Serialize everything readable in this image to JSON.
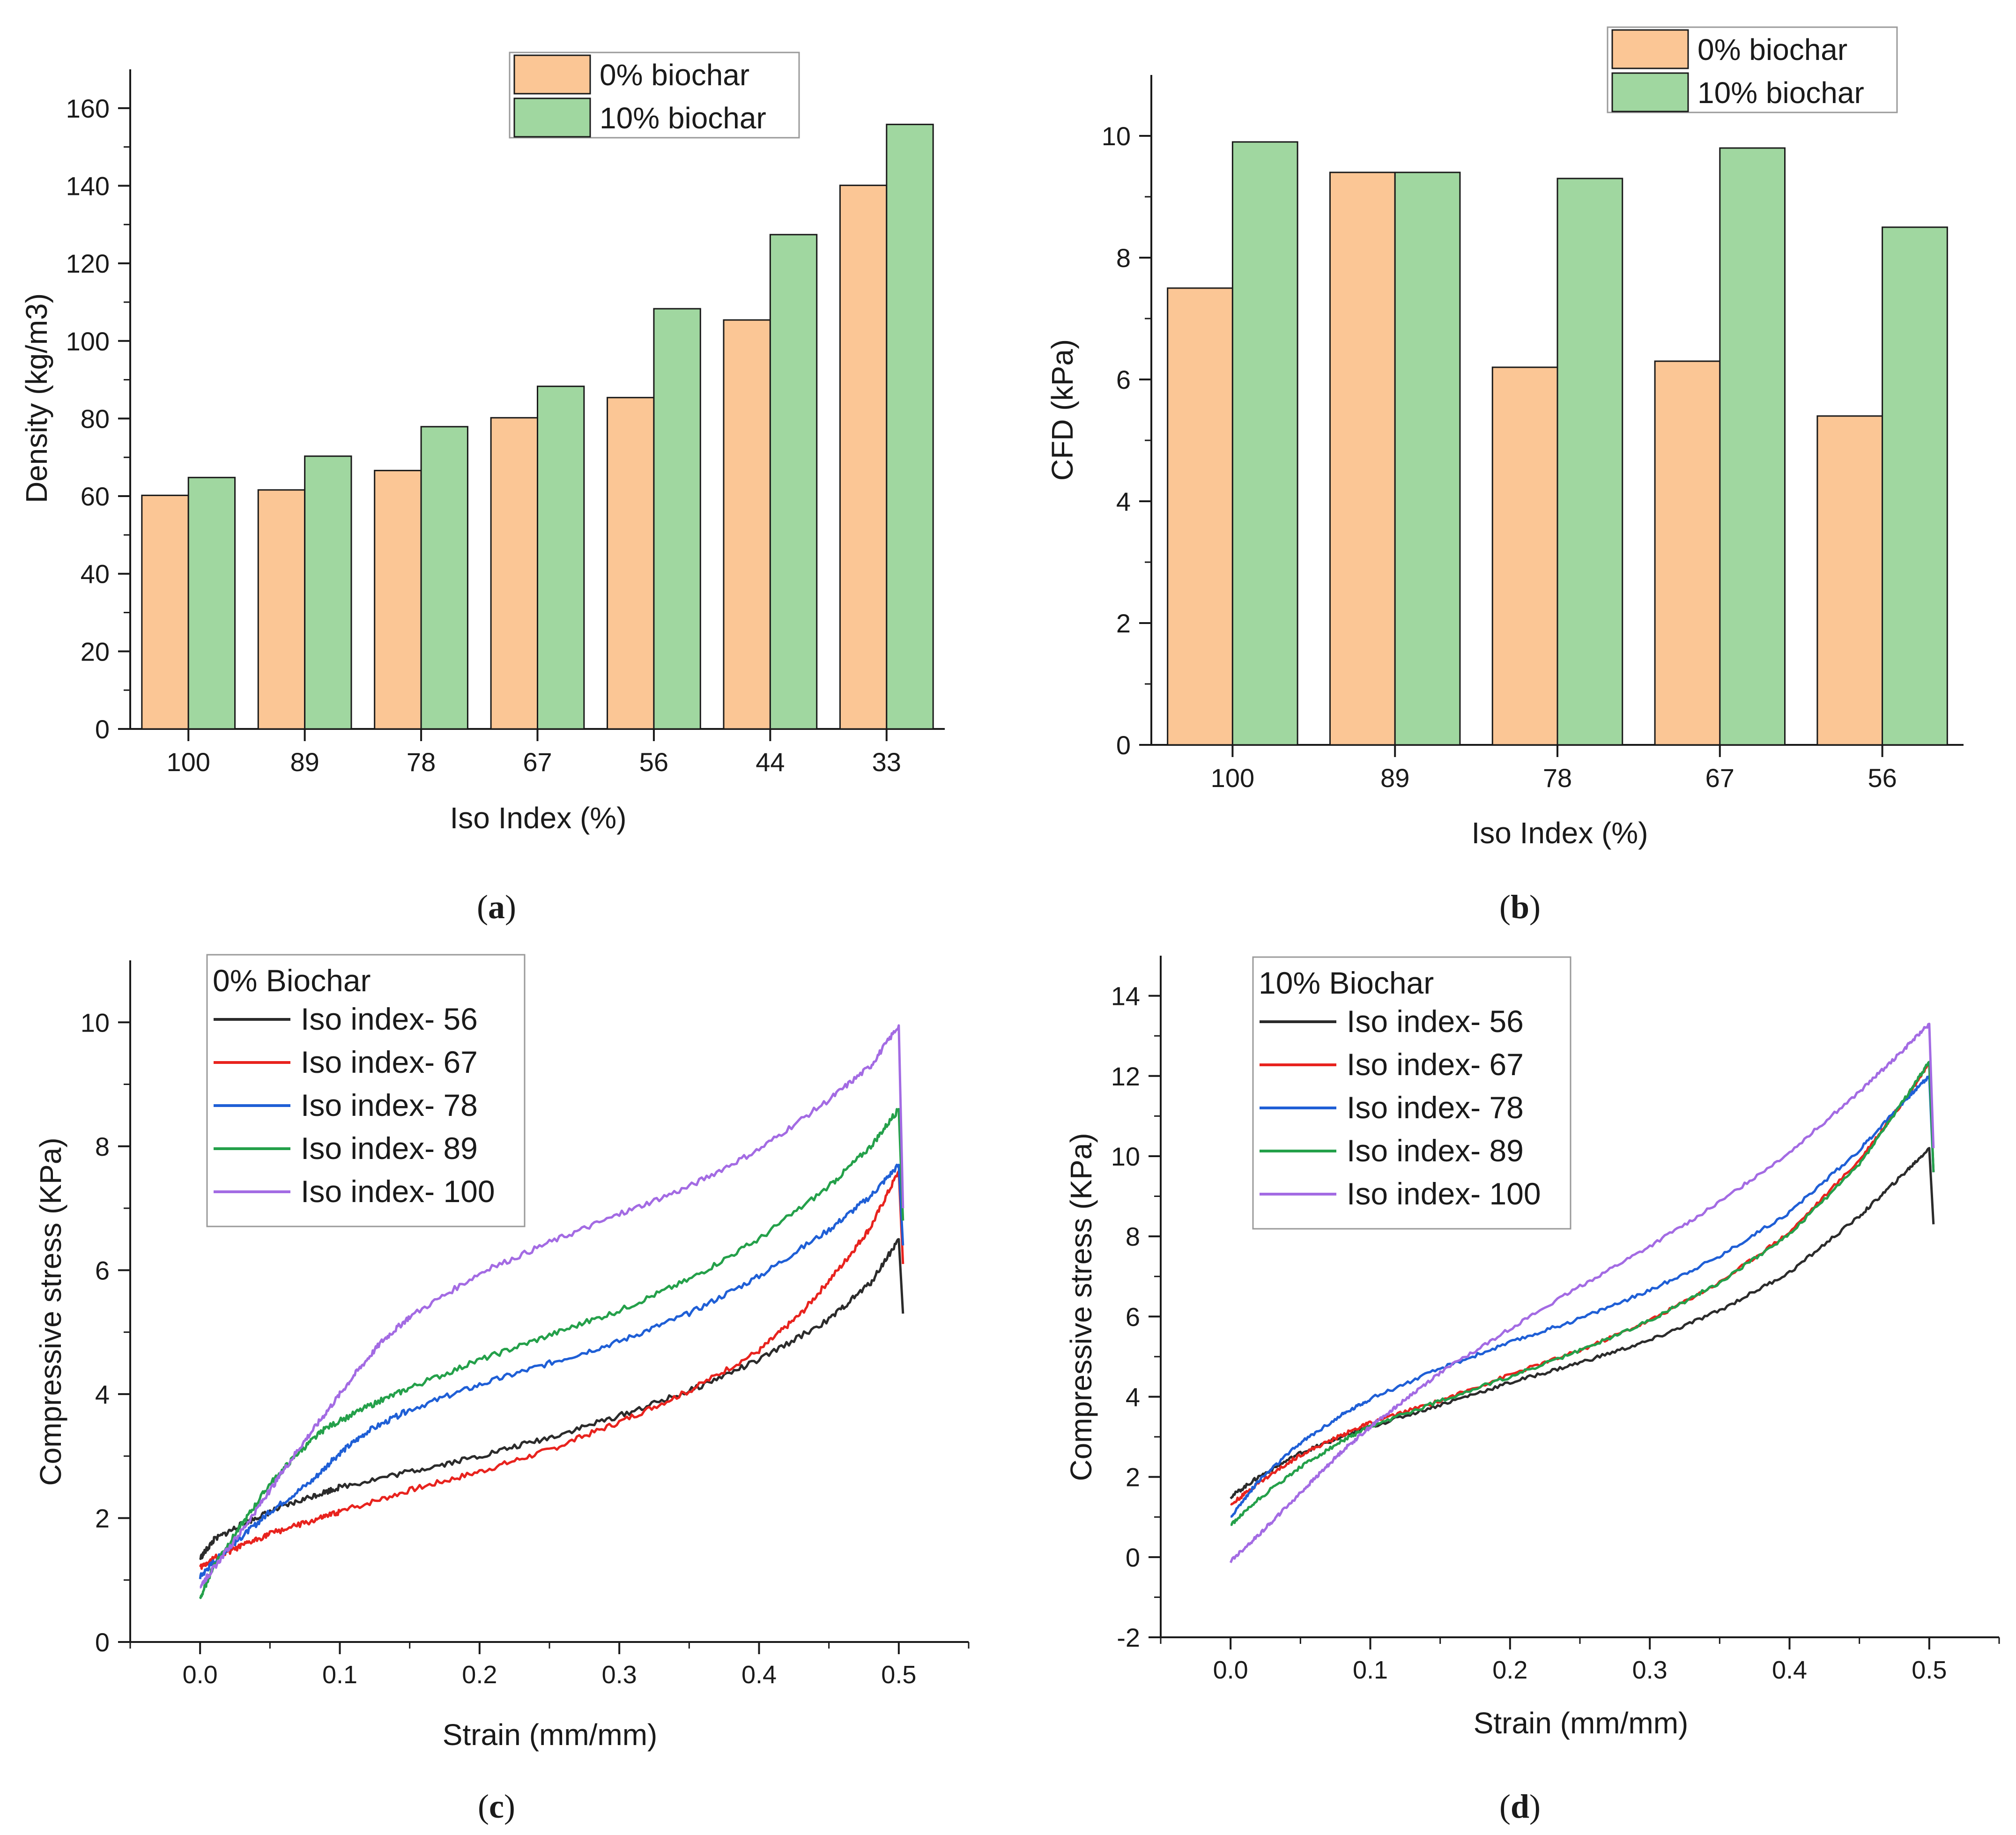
{
  "panels": [
    {
      "id": "a",
      "caption_letter": "a",
      "chart_data": {
        "type": "bar",
        "title": "",
        "xlabel": "Iso Index (%)",
        "ylabel": "Density (kg/m3)",
        "ylim": [
          0,
          170
        ],
        "yticks": [
          0,
          20,
          40,
          60,
          80,
          100,
          120,
          140,
          160
        ],
        "categories": [
          "100",
          "89",
          "78",
          "67",
          "56",
          "44",
          "33"
        ],
        "series": [
          {
            "name": "0% biochar",
            "color": "#FBC695",
            "values": [
              60.2,
              61.6,
              66.6,
              80.2,
              85.4,
              105.4,
              140.1
            ]
          },
          {
            "name": "10% biochar",
            "color": "#A0D7A0",
            "values": [
              64.8,
              70.3,
              77.9,
              88.3,
              108.3,
              127.4,
              155.8
            ]
          }
        ],
        "legend_position": "top-right"
      }
    },
    {
      "id": "b",
      "caption_letter": "b",
      "chart_data": {
        "type": "bar",
        "title": "",
        "xlabel": "Iso Index (%)",
        "ylabel": "CFD (kPa)",
        "ylim": [
          0,
          11
        ],
        "yticks": [
          0,
          2,
          4,
          6,
          8,
          10
        ],
        "categories": [
          "100",
          "89",
          "78",
          "67",
          "56"
        ],
        "series": [
          {
            "name": "0% biochar",
            "color": "#FBC695",
            "values": [
              7.5,
              9.4,
              6.2,
              6.3,
              5.4
            ]
          },
          {
            "name": "10% biochar",
            "color": "#A0D7A0",
            "values": [
              9.9,
              9.4,
              9.3,
              9.8,
              8.5
            ]
          }
        ],
        "legend_position": "top-right"
      }
    },
    {
      "id": "c",
      "caption_letter": "c",
      "chart_data": {
        "type": "line",
        "title": "",
        "xlabel": "Strain (mm/mm)",
        "ylabel": "Compressive stress (KPa)",
        "xlim": [
          -0.05,
          0.55
        ],
        "ylim": [
          0,
          11
        ],
        "xticks": [
          0.0,
          0.1,
          0.2,
          0.3,
          0.4,
          0.5
        ],
        "xtick_labels": [
          "0.0",
          "0.1",
          "0.2",
          "0.3",
          "0.4",
          "0.5"
        ],
        "yticks": [
          0,
          2,
          4,
          6,
          8,
          10
        ],
        "legend_title": "0% Biochar",
        "legend_position": "top-left",
        "series": [
          {
            "name": "Iso index- 56",
            "color": "#2b2b2b",
            "x": [
              0,
              0.01,
              0.03,
              0.05,
              0.08,
              0.1,
              0.15,
              0.2,
              0.25,
              0.3,
              0.35,
              0.4,
              0.45,
              0.48,
              0.5,
              0.503
            ],
            "y": [
              1.35,
              1.65,
              1.9,
              2.1,
              2.35,
              2.5,
              2.75,
              3.0,
              3.3,
              3.65,
              4.05,
              4.55,
              5.2,
              5.8,
              6.5,
              5.3
            ]
          },
          {
            "name": "Iso index- 67",
            "color": "#e8231e",
            "x": [
              0,
              0.01,
              0.03,
              0.05,
              0.08,
              0.1,
              0.15,
              0.2,
              0.25,
              0.3,
              0.35,
              0.4,
              0.43,
              0.46,
              0.48,
              0.5,
              0.503
            ],
            "y": [
              1.2,
              1.35,
              1.55,
              1.75,
              1.95,
              2.1,
              2.45,
              2.75,
              3.1,
              3.55,
              4.05,
              4.7,
              5.3,
              6.1,
              6.7,
              7.6,
              6.1
            ]
          },
          {
            "name": "Iso index- 78",
            "color": "#1f5fd6",
            "x": [
              0,
              0.01,
              0.03,
              0.05,
              0.08,
              0.1,
              0.12,
              0.15,
              0.2,
              0.25,
              0.3,
              0.35,
              0.4,
              0.45,
              0.48,
              0.5,
              0.503
            ],
            "y": [
              1.05,
              1.3,
              1.7,
              2.1,
              2.6,
              3.05,
              3.4,
              3.75,
              4.15,
              4.5,
              4.85,
              5.3,
              5.9,
              6.65,
              7.2,
              7.7,
              6.4
            ]
          },
          {
            "name": "Iso index- 89",
            "color": "#24a04a",
            "x": [
              0,
              0.01,
              0.03,
              0.05,
              0.07,
              0.09,
              0.12,
              0.15,
              0.2,
              0.25,
              0.3,
              0.35,
              0.4,
              0.45,
              0.48,
              0.5,
              0.503
            ],
            "y": [
              0.7,
              1.25,
              1.9,
              2.55,
              3.05,
              3.45,
              3.8,
              4.1,
              4.55,
              4.95,
              5.35,
              5.85,
              6.5,
              7.35,
              8.0,
              8.6,
              6.8
            ]
          },
          {
            "name": "Iso index- 100",
            "color": "#a36be3",
            "x": [
              0,
              0.01,
              0.03,
              0.05,
              0.07,
              0.09,
              0.11,
              0.13,
              0.15,
              0.2,
              0.25,
              0.3,
              0.35,
              0.4,
              0.45,
              0.48,
              0.5,
              0.503
            ],
            "y": [
              0.9,
              1.2,
              1.8,
              2.45,
              3.1,
              3.7,
              4.3,
              4.85,
              5.25,
              5.95,
              6.45,
              6.9,
              7.35,
              7.95,
              8.75,
              9.3,
              9.95,
              7.0
            ]
          }
        ]
      }
    },
    {
      "id": "d",
      "caption_letter": "d",
      "chart_data": {
        "type": "line",
        "title": "",
        "xlabel": "Strain (mm/mm)",
        "ylabel": "Compressive stress (KPa)",
        "xlim": [
          -0.05,
          0.55
        ],
        "ylim": [
          -2,
          15
        ],
        "xticks": [
          0.0,
          0.1,
          0.2,
          0.3,
          0.4,
          0.5
        ],
        "xtick_labels": [
          "0.0",
          "0.1",
          "0.2",
          "0.3",
          "0.4",
          "0.5"
        ],
        "yticks": [
          -2,
          0,
          2,
          4,
          6,
          8,
          10,
          12,
          14
        ],
        "legend_title": "10% Biochar",
        "legend_position": "top-left",
        "series": [
          {
            "name": "Iso index- 56",
            "color": "#2b2b2b",
            "x": [
              0,
              0.02,
              0.05,
              0.08,
              0.1,
              0.15,
              0.2,
              0.25,
              0.3,
              0.35,
              0.4,
              0.45,
              0.48,
              0.5,
              0.503
            ],
            "y": [
              1.5,
              2.0,
              2.6,
              3.0,
              3.25,
              3.8,
              4.35,
              4.85,
              5.4,
              6.15,
              7.1,
              8.5,
              9.5,
              10.2,
              8.3
            ]
          },
          {
            "name": "Iso index- 67",
            "color": "#e8231e",
            "x": [
              0,
              0.02,
              0.05,
              0.08,
              0.1,
              0.15,
              0.2,
              0.25,
              0.3,
              0.35,
              0.4,
              0.45,
              0.48,
              0.5,
              0.503
            ],
            "y": [
              1.3,
              1.85,
              2.55,
              3.05,
              3.35,
              3.9,
              4.55,
              5.15,
              5.9,
              6.85,
              8.1,
              9.9,
              11.3,
              12.3,
              9.6
            ]
          },
          {
            "name": "Iso index- 78",
            "color": "#1f5fd6",
            "x": [
              0,
              0.02,
              0.05,
              0.08,
              0.1,
              0.15,
              0.2,
              0.25,
              0.3,
              0.35,
              0.4,
              0.45,
              0.48,
              0.5,
              0.503
            ],
            "y": [
              1.0,
              1.9,
              2.85,
              3.55,
              3.95,
              4.7,
              5.35,
              5.95,
              6.65,
              7.5,
              8.6,
              10.15,
              11.3,
              12.0,
              9.6
            ]
          },
          {
            "name": "Iso index- 89",
            "color": "#24a04a",
            "x": [
              0,
              0.02,
              0.05,
              0.08,
              0.1,
              0.15,
              0.2,
              0.25,
              0.3,
              0.35,
              0.4,
              0.45,
              0.48,
              0.5,
              0.503
            ],
            "y": [
              0.8,
              1.45,
              2.25,
              2.9,
              3.25,
              3.9,
              4.5,
              5.15,
              5.9,
              6.85,
              8.05,
              9.8,
              11.3,
              12.35,
              9.6
            ]
          },
          {
            "name": "Iso index- 100",
            "color": "#a36be3",
            "x": [
              0,
              0.02,
              0.04,
              0.06,
              0.08,
              0.1,
              0.12,
              0.15,
              0.2,
              0.25,
              0.3,
              0.35,
              0.4,
              0.45,
              0.48,
              0.5,
              0.503
            ],
            "y": [
              -0.1,
              0.55,
              1.25,
              1.95,
              2.65,
              3.25,
              3.8,
              4.6,
              5.7,
              6.75,
              7.75,
              8.85,
              10.1,
              11.6,
              12.6,
              13.3,
              10.2
            ]
          }
        ]
      }
    }
  ]
}
